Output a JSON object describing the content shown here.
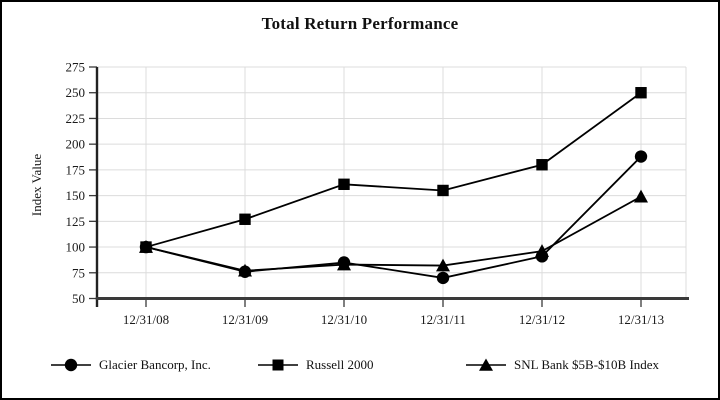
{
  "page": {
    "title": "Total Return Performance"
  },
  "chart_data": {
    "type": "line",
    "title": "Total Return Performance",
    "xlabel": "",
    "ylabel": "Index Value",
    "ylim": [
      50,
      275
    ],
    "ytick_step": 25,
    "yticks": [
      50,
      75,
      100,
      125,
      150,
      175,
      200,
      225,
      250,
      275
    ],
    "categories": [
      "12/31/08",
      "12/31/09",
      "12/31/10",
      "12/31/11",
      "12/31/12",
      "12/31/13"
    ],
    "series": [
      {
        "name": "Glacier Bancorp, Inc.",
        "marker": "circle",
        "color": "#000000",
        "values": [
          100,
          76,
          85,
          70,
          91,
          188
        ]
      },
      {
        "name": "Russell 2000",
        "marker": "square",
        "color": "#000000",
        "values": [
          100,
          127,
          161,
          155,
          180,
          250
        ]
      },
      {
        "name": "SNL Bank $5B-$10B Index",
        "marker": "triangle",
        "color": "#000000",
        "values": [
          100,
          77,
          83,
          82,
          96,
          149
        ]
      }
    ],
    "grid": true,
    "legend_position": "bottom",
    "colors": {
      "series": "#000000",
      "axis": "#3a3a3a",
      "gridline": "#dcdcdc",
      "text": "#1a1a1a"
    }
  }
}
